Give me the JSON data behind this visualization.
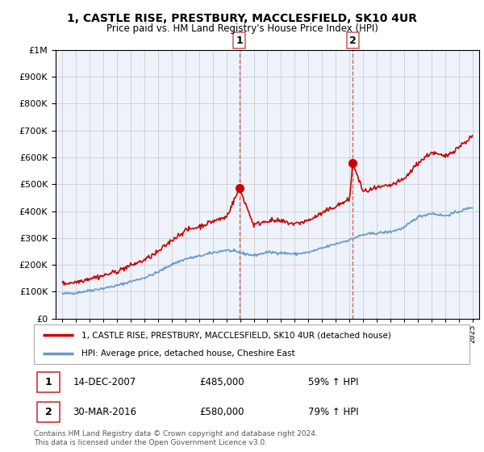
{
  "title": "1, CASTLE RISE, PRESTBURY, MACCLESFIELD, SK10 4UR",
  "subtitle": "Price paid vs. HM Land Registry's House Price Index (HPI)",
  "legend_line1": "1, CASTLE RISE, PRESTBURY, MACCLESFIELD, SK10 4UR (detached house)",
  "legend_line2": "HPI: Average price, detached house, Cheshire East",
  "sale1_date": "14-DEC-2007",
  "sale1_price": "£485,000",
  "sale1_hpi": "59% ↑ HPI",
  "sale1_year": 2007.96,
  "sale1_value": 485000,
  "sale2_date": "30-MAR-2016",
  "sale2_price": "£580,000",
  "sale2_hpi": "79% ↑ HPI",
  "sale2_year": 2016.25,
  "sale2_value": 580000,
  "footer": "Contains HM Land Registry data © Crown copyright and database right 2024.\nThis data is licensed under the Open Government Licence v3.0.",
  "red_color": "#cc0000",
  "blue_color": "#6699cc",
  "vline_color": "#cc6666",
  "background_color": "#eef2fb",
  "ylim": [
    0,
    1000000
  ],
  "yticks": [
    0,
    100000,
    200000,
    300000,
    400000,
    500000,
    600000,
    700000,
    800000,
    900000,
    1000000
  ],
  "xlim_start": 1994.5,
  "xlim_end": 2025.5
}
